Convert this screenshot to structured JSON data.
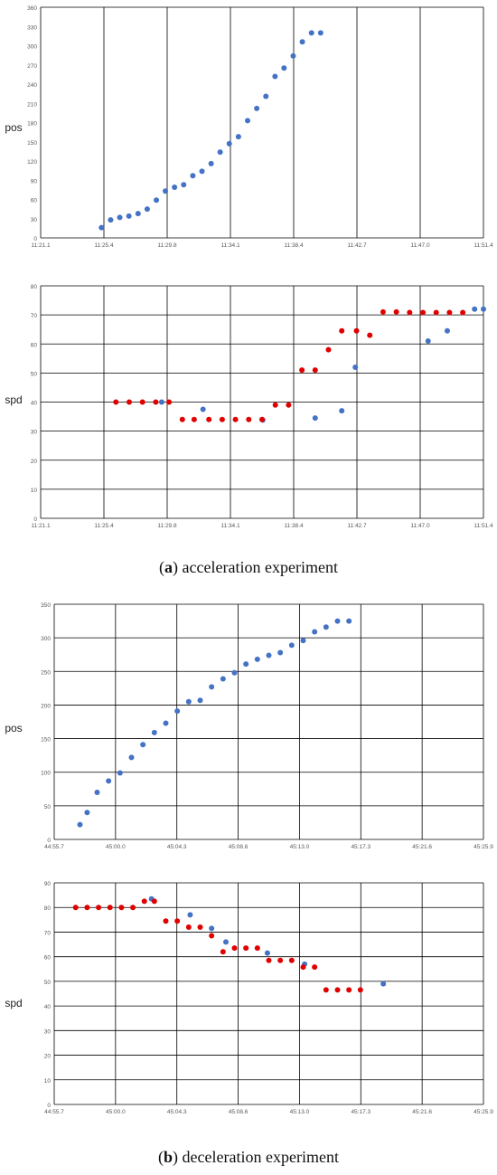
{
  "colors": {
    "series_blue": "#4472C4",
    "series_red": "#E00000",
    "grid": "#000000",
    "axis_text": "#595959"
  },
  "captions": [
    {
      "letter": "a",
      "text": " acceleration experiment"
    },
    {
      "letter": "b",
      "text": " deceleration experiment"
    }
  ],
  "chart_data": [
    {
      "type": "scatter",
      "ylabel": "pos",
      "xlim": [
        0,
        3
      ],
      "ylim": [
        0,
        360
      ],
      "xticks": [
        "11:21.1",
        "11:25.4",
        "11:29.8",
        "11:34.1",
        "11:38.4",
        "11:42.7",
        "11:47.0",
        "11:51.4"
      ],
      "yticks": [
        "0",
        "30",
        "60",
        "90",
        "120",
        "150",
        "180",
        "210",
        "240",
        "270",
        "300",
        "330",
        "360"
      ],
      "grid": "vertical",
      "series": [
        {
          "color": "blue",
          "x": [
            0.412,
            0.474,
            0.536,
            0.598,
            0.66,
            0.722,
            0.784,
            0.845,
            0.907,
            0.969,
            1.031,
            1.093,
            1.155,
            1.216,
            1.278,
            1.34,
            1.402,
            1.464,
            1.526,
            1.588,
            1.649,
            1.711,
            1.773,
            1.835,
            1.897
          ],
          "y": [
            16,
            28,
            32,
            34,
            38,
            45,
            59,
            73,
            79,
            83,
            97,
            104,
            116,
            134,
            147,
            158,
            183,
            202,
            221,
            252,
            265,
            284,
            306,
            320,
            320
          ]
        }
      ]
    },
    {
      "type": "scatter",
      "ylabel": "spd",
      "xlim": [
        0,
        3
      ],
      "ylim": [
        0,
        80
      ],
      "xticks": [
        "11:21.1",
        "11:25.4",
        "11:29.8",
        "11:34.1",
        "11:38.4",
        "11:42.7",
        "11:47.0",
        "11:51.4"
      ],
      "yticks": [
        "0",
        "10",
        "20",
        "30",
        "40",
        "50",
        "60",
        "70",
        "80"
      ],
      "grid": "both",
      "series": [
        {
          "color": "blue",
          "x": [
            0.82,
            1.1,
            1.505,
            1.86,
            2.04,
            2.132,
            2.625,
            2.755,
            2.94,
            3.0
          ],
          "y": [
            40,
            37.5,
            33.8,
            34.5,
            37,
            52,
            61,
            64.5,
            72,
            72
          ]
        },
        {
          "color": "red",
          "x": [
            0.51,
            0.6,
            0.69,
            0.78,
            0.87,
            0.96,
            1.04,
            1.14,
            1.23,
            1.32,
            1.41,
            1.5,
            1.59,
            1.68,
            1.77,
            1.86,
            1.95,
            2.04,
            2.14,
            2.23,
            2.32,
            2.41,
            2.5,
            2.59,
            2.68,
            2.77,
            2.86
          ],
          "y": [
            40,
            40,
            40,
            40,
            40,
            34,
            34,
            34,
            34,
            34,
            34,
            34,
            39,
            39,
            51,
            51,
            58,
            64.5,
            64.5,
            63,
            71,
            71,
            70.8,
            70.8,
            70.8,
            70.8,
            70.8
          ]
        }
      ]
    },
    {
      "type": "scatter",
      "ylabel": "pos",
      "xlim": [
        0,
        3
      ],
      "ylim": [
        0,
        350
      ],
      "xticks": [
        "44:55.7",
        "45:00.0",
        "45:04.3",
        "45:08.6",
        "45:13.0",
        "45:17.3",
        "45:21.6",
        "45:25.9"
      ],
      "yticks": [
        "0",
        "50",
        "100",
        "150",
        "200",
        "250",
        "300",
        "350"
      ],
      "grid": "both",
      "series": [
        {
          "color": "blue",
          "x": [
            0.18,
            0.23,
            0.3,
            0.38,
            0.46,
            0.54,
            0.62,
            0.7,
            0.78,
            0.86,
            0.94,
            1.02,
            1.1,
            1.18,
            1.26,
            1.34,
            1.42,
            1.5,
            1.58,
            1.66,
            1.74,
            1.82,
            1.9,
            1.98,
            2.06
          ],
          "y": [
            22,
            40,
            70,
            87,
            99,
            122,
            141,
            159,
            173,
            191,
            205,
            207,
            227,
            239,
            248,
            261,
            268,
            274,
            278,
            289,
            296,
            309,
            316,
            325,
            325
          ]
        }
      ]
    },
    {
      "type": "scatter",
      "ylabel": "spd",
      "xlim": [
        0,
        3
      ],
      "ylim": [
        0,
        90
      ],
      "xticks": [
        "44:55.7",
        "45:00.0",
        "45:04.3",
        "45:08.6",
        "45:13.0",
        "45:17.3",
        "45:21.6",
        "45:25.9"
      ],
      "yticks": [
        "0",
        "10",
        "20",
        "30",
        "40",
        "50",
        "60",
        "70",
        "80",
        "90"
      ],
      "grid": "both",
      "series": [
        {
          "color": "blue",
          "x": [
            0.68,
            0.95,
            1.1,
            1.2,
            1.49,
            1.75,
            2.3
          ],
          "y": [
            83.5,
            77,
            71.5,
            66,
            61.5,
            57,
            49
          ]
        },
        {
          "color": "red",
          "x": [
            0.15,
            0.23,
            0.31,
            0.39,
            0.47,
            0.55,
            0.63,
            0.7,
            0.78,
            0.86,
            0.94,
            1.02,
            1.1,
            1.18,
            1.26,
            1.34,
            1.42,
            1.5,
            1.58,
            1.66,
            1.74,
            1.82,
            1.9,
            1.98,
            2.06,
            2.14
          ],
          "y": [
            80,
            80,
            80,
            80,
            80,
            80,
            82.5,
            82.5,
            74.5,
            74.5,
            72,
            72,
            68.5,
            62,
            63.5,
            63.5,
            63.5,
            58.5,
            58.5,
            58.5,
            55.8,
            55.8,
            46.5,
            46.5,
            46.5,
            46.5
          ]
        }
      ]
    }
  ]
}
